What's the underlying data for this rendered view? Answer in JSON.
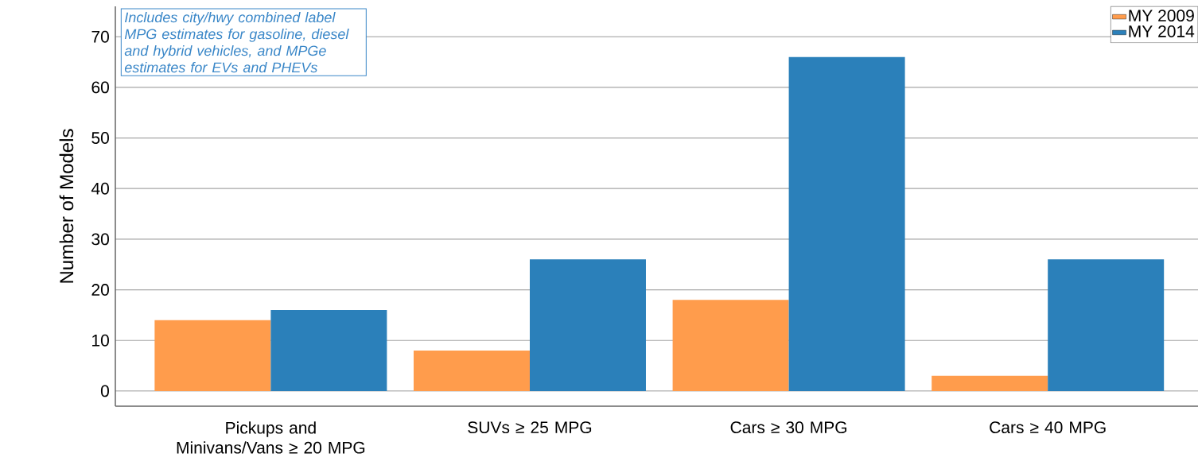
{
  "chart_data": {
    "type": "bar",
    "ylabel": "Number of Models",
    "categories": [
      "Pickups and Minivans/Vans ≥ 20 MPG",
      "SUVs ≥ 25 MPG",
      "Cars ≥ 30 MPG",
      "Cars ≥ 40 MPG"
    ],
    "series": [
      {
        "name": "MY 2009",
        "color": "#ff9c4c",
        "values": [
          14,
          8,
          18,
          3
        ]
      },
      {
        "name": "MY 2014",
        "color": "#2b80ba",
        "values": [
          16,
          26,
          66,
          26
        ]
      }
    ],
    "ylim": [
      -3,
      76
    ],
    "yticks": [
      0,
      10,
      20,
      30,
      40,
      50,
      60,
      70
    ],
    "grid": "y",
    "legend": "top right",
    "annotations": [
      "Includes city/hwy combined label MPG estimates for gasoline, diesel and hybrid vehicles, and MPGe estimates for EVs and PHEVs"
    ]
  }
}
